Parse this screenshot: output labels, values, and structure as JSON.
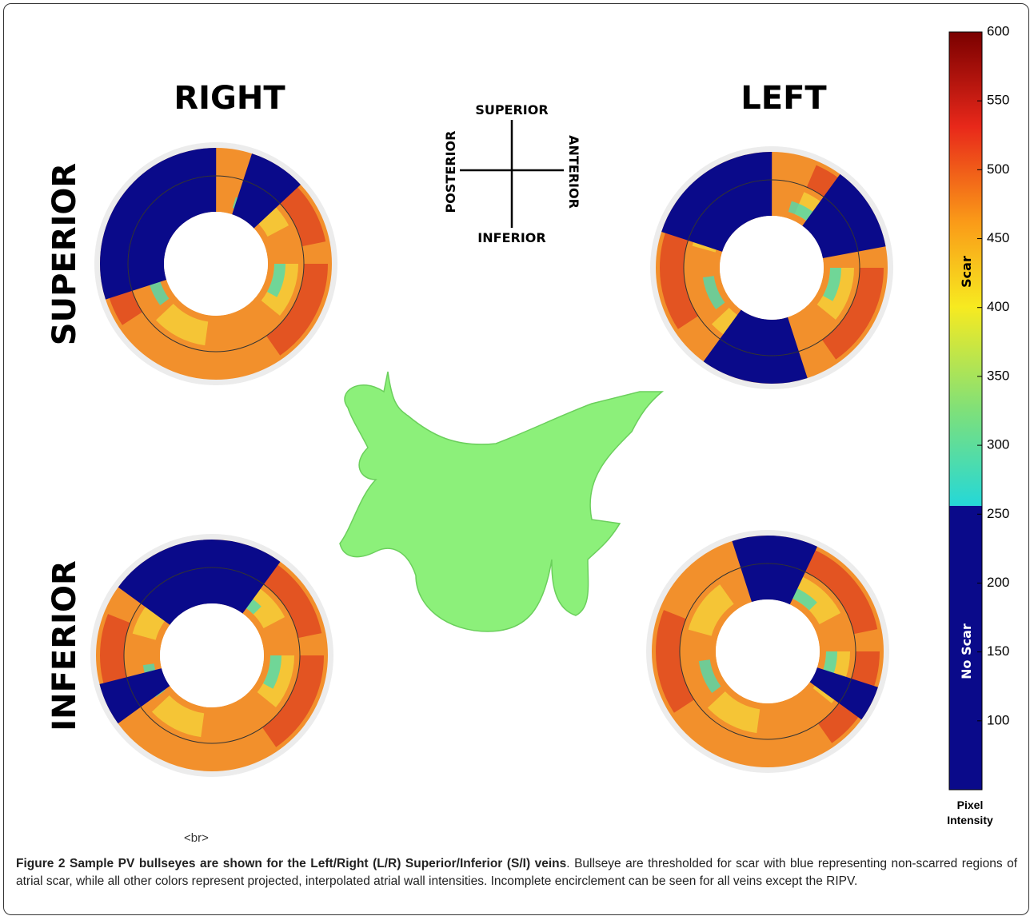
{
  "figure": {
    "column_labels": [
      "RIGHT",
      "LEFT"
    ],
    "row_labels": [
      "SUPERIOR",
      "INFERIOR"
    ],
    "orientation": {
      "top": "SUPERIOR",
      "bottom": "INFERIOR",
      "left": "POSTERIOR",
      "right": "ANTERIOR"
    },
    "colorbar": {
      "lim": [
        50,
        600
      ],
      "ticks": [
        100,
        150,
        200,
        250,
        300,
        350,
        400,
        450,
        500,
        550,
        600
      ],
      "threshold": 256,
      "scar_label": "Scar",
      "no_scar_label": "No Scar",
      "title": "Pixel Intensity"
    },
    "stray_text": "<br>"
  },
  "caption": {
    "label": "Figure 2",
    "title": "Sample PV bullseyes are shown for the Left/Right (L/R) Superior/Inferior (S/I) veins",
    "text": ". Bullseye are thresholded for scar with blue representing non-scarred regions of atrial scar, while all other colors represent projected, interpolated atrial wall intensities. Incomplete encirclement can be seen for all veins except the RIPV."
  }
}
